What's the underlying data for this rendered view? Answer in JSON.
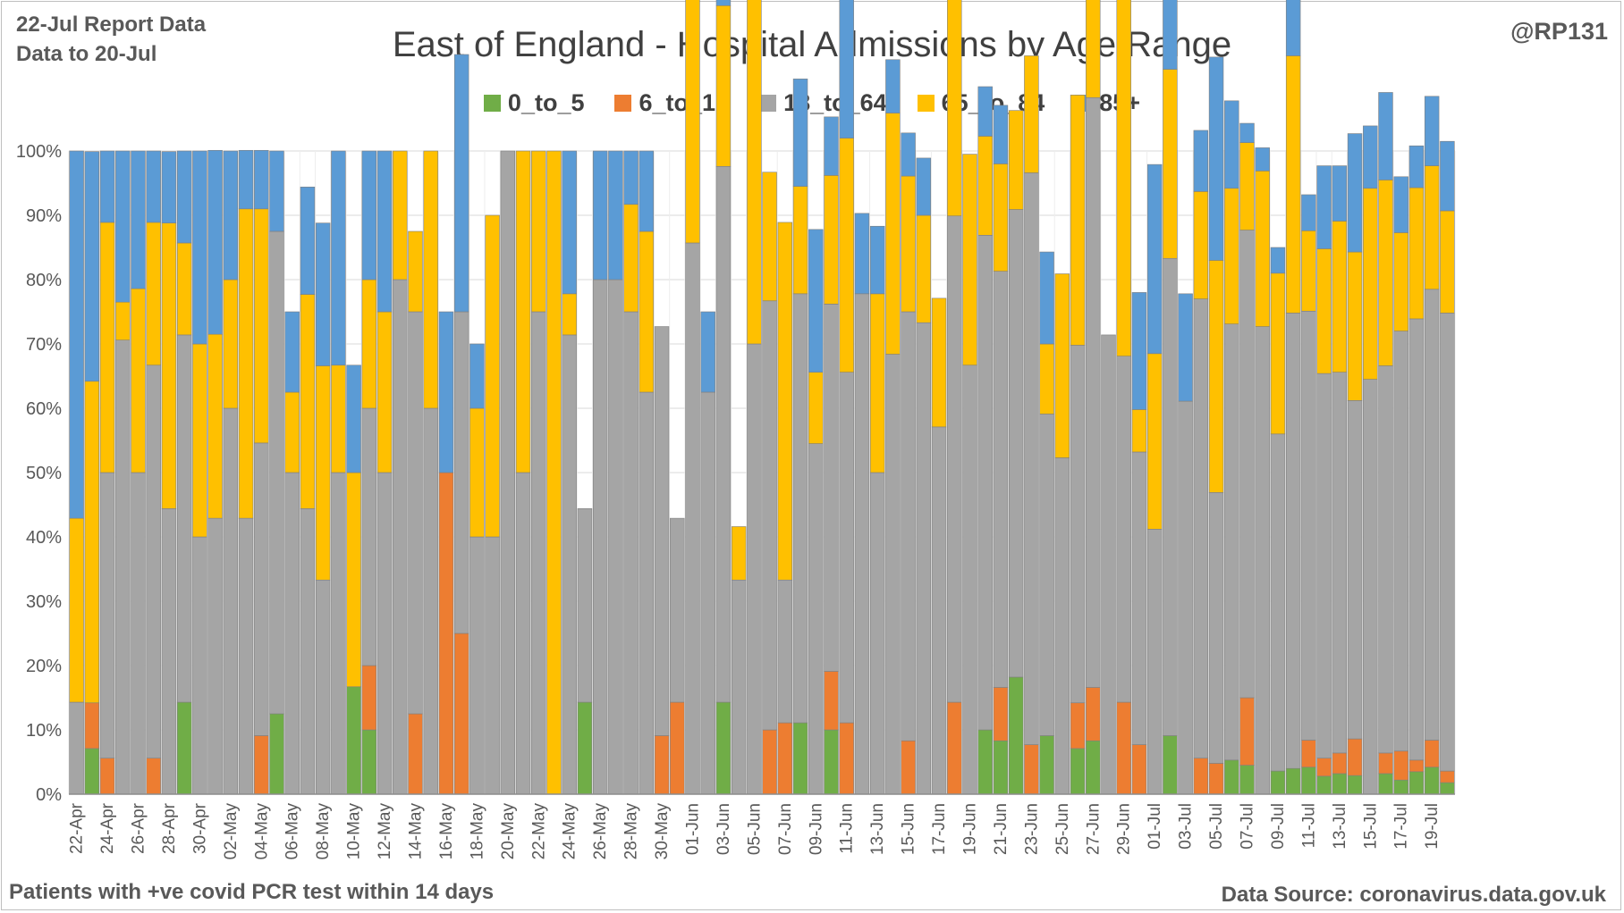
{
  "header": {
    "report_line1": "22-Jul Report Data",
    "report_line2": "Data to 20-Jul",
    "handle": "@RP131",
    "footnote": "Patients with  +ve covid PCR test within 14 days",
    "source": "Data Source: coronavirus.data.gov.uk"
  },
  "chart_data": {
    "type": "bar",
    "stacked": "percent",
    "title": "East of England - Hospital Admissions by Age Range",
    "xlabel": "",
    "ylabel": "",
    "ylim": [
      0,
      100
    ],
    "yticks": [
      "0%",
      "10%",
      "20%",
      "30%",
      "40%",
      "50%",
      "60%",
      "70%",
      "80%",
      "90%",
      "100%"
    ],
    "grid": true,
    "legend": "top-center",
    "categories": [
      "22-Apr",
      "23-Apr",
      "24-Apr",
      "25-Apr",
      "26-Apr",
      "27-Apr",
      "28-Apr",
      "29-Apr",
      "30-Apr",
      "01-May",
      "02-May",
      "03-May",
      "04-May",
      "05-May",
      "06-May",
      "07-May",
      "08-May",
      "09-May",
      "10-May",
      "11-May",
      "12-May",
      "13-May",
      "14-May",
      "15-May",
      "16-May",
      "17-May",
      "18-May",
      "19-May",
      "20-May",
      "21-May",
      "22-May",
      "23-May",
      "24-May",
      "25-May",
      "26-May",
      "27-May",
      "28-May",
      "29-May",
      "30-May",
      "31-May",
      "01-Jun",
      "02-Jun",
      "03-Jun",
      "04-Jun",
      "05-Jun",
      "06-Jun",
      "07-Jun",
      "08-Jun",
      "09-Jun",
      "10-Jun",
      "11-Jun",
      "12-Jun",
      "13-Jun",
      "14-Jun",
      "15-Jun",
      "16-Jun",
      "17-Jun",
      "18-Jun",
      "19-Jun",
      "20-Jun",
      "21-Jun",
      "22-Jun",
      "23-Jun",
      "24-Jun",
      "25-Jun",
      "26-Jun",
      "27-Jun",
      "28-Jun",
      "29-Jun",
      "30-Jun",
      "01-Jul",
      "02-Jul",
      "03-Jul",
      "04-Jul",
      "05-Jul",
      "06-Jul",
      "07-Jul",
      "08-Jul",
      "09-Jul",
      "10-Jul",
      "11-Jul",
      "12-Jul",
      "13-Jul",
      "14-Jul",
      "15-Jul",
      "16-Jul",
      "17-Jul",
      "18-Jul",
      "19-Jul",
      "20-Jul"
    ],
    "tick_labels": [
      "22-Apr",
      "24-Apr",
      "26-Apr",
      "28-Apr",
      "30-Apr",
      "02-May",
      "04-May",
      "06-May",
      "08-May",
      "10-May",
      "12-May",
      "14-May",
      "16-May",
      "18-May",
      "20-May",
      "22-May",
      "24-May",
      "26-May",
      "28-May",
      "30-May",
      "01-Jun",
      "03-Jun",
      "05-Jun",
      "07-Jun",
      "09-Jun",
      "11-Jun",
      "13-Jun",
      "15-Jun",
      "17-Jun",
      "19-Jun",
      "21-Jun",
      "23-Jun",
      "25-Jun",
      "27-Jun",
      "29-Jun",
      "01-Jul",
      "03-Jul",
      "05-Jul",
      "07-Jul",
      "09-Jul",
      "11-Jul",
      "13-Jul",
      "15-Jul",
      "17-Jul",
      "19-Jul"
    ],
    "series": [
      {
        "name": "0_to_5",
        "color": "#70ad47",
        "values": [
          0,
          7.1,
          0,
          0,
          0,
          0,
          0,
          14.3,
          0,
          0,
          0,
          0,
          0,
          12.5,
          0,
          0,
          0,
          0,
          16.7,
          10,
          0,
          0,
          0,
          0,
          0,
          0,
          0,
          0,
          0,
          0,
          0,
          0,
          0,
          14.3,
          0,
          0,
          0,
          0,
          0,
          0,
          0,
          0,
          14.3,
          0,
          0,
          0,
          0,
          11.1,
          0,
          10,
          0,
          0,
          0,
          0,
          0,
          0,
          0,
          0,
          0,
          10,
          8.3,
          18.2,
          0,
          9.1,
          0,
          7.1,
          8.3,
          0,
          0,
          0,
          0,
          9.1,
          0,
          0,
          0,
          5.3,
          4.5,
          0,
          3.6,
          4,
          4.2,
          2.8,
          3.2,
          2.9,
          0,
          3.2,
          2.2,
          3.5,
          4.2,
          1.8
        ]
      },
      {
        "name": "6_to_17",
        "color": "#ed7d31",
        "values": [
          0,
          7.1,
          5.6,
          0,
          0,
          5.6,
          0,
          0,
          0,
          0,
          0,
          0,
          9.1,
          0,
          0,
          0,
          0,
          0,
          0,
          10,
          0,
          0,
          12.5,
          0,
          50,
          25,
          0,
          0,
          0,
          0,
          0,
          0,
          0,
          0,
          0,
          0,
          0,
          0,
          9.1,
          14.3,
          0,
          0,
          0,
          0,
          0,
          10,
          11.1,
          0,
          0,
          9.1,
          11.1,
          0,
          0,
          0,
          8.3,
          0,
          0,
          14.3,
          0,
          0,
          8.3,
          0,
          7.7,
          0,
          0,
          7.1,
          8.3,
          0,
          14.3,
          7.7,
          0,
          0,
          0,
          5.6,
          4.8,
          0,
          10.5,
          0,
          0,
          0,
          4.2,
          2.8,
          3.2,
          5.7,
          0,
          3.2,
          4.5,
          1.8,
          4.2,
          1.8
        ]
      },
      {
        "name": "18_to_64",
        "color": "#a5a5a5",
        "values": [
          14.3,
          0,
          44.4,
          70.6,
          50,
          61.1,
          44.4,
          57.1,
          40,
          42.9,
          60,
          42.9,
          45.5,
          75,
          50,
          44.4,
          33.3,
          50,
          0,
          40,
          50,
          80,
          62.5,
          60,
          0,
          50,
          40,
          40,
          100,
          50,
          75,
          0,
          71.4,
          30.1,
          80,
          80,
          75,
          62.5,
          63.6,
          28.6,
          85.7,
          62.5,
          83.3,
          33.3,
          70,
          66.7,
          22.2,
          66.7,
          54.5,
          57.1,
          54.5,
          77.8,
          50,
          68.4,
          66.7,
          73.3,
          57.1,
          75.6,
          66.7,
          76.9,
          64.7,
          72.7,
          88.9,
          50,
          52.3,
          55.6,
          91.7,
          71.4,
          53.8,
          45.5,
          41.2,
          74.2,
          61.1,
          71.4,
          42.1,
          67.8,
          72.7,
          72.7,
          52.4,
          70.8,
          66.7,
          59.8,
          59.2,
          52.6,
          64.5,
          60.2,
          65.3,
          68.6,
          70.1,
          71.2
        ]
      },
      {
        "name": "65_to_84",
        "color": "#ffc000",
        "values": [
          28.6,
          50,
          38.9,
          5.9,
          28.6,
          22.2,
          44.4,
          14.3,
          30,
          28.6,
          20,
          48.1,
          36.4,
          0,
          12.5,
          33.3,
          33.3,
          16.7,
          33.3,
          20,
          25,
          20,
          12.5,
          40,
          0,
          0,
          20,
          50,
          0,
          50,
          25,
          100,
          6.4,
          0,
          0,
          0,
          16.7,
          25,
          0,
          0,
          57.1,
          0,
          25,
          8.3,
          66.7,
          20,
          55.6,
          16.7,
          11.1,
          20,
          36.4,
          0,
          27.8,
          37.5,
          21.1,
          16.7,
          20,
          35.7,
          32.8,
          15.4,
          16.7,
          15.4,
          18.2,
          10.9,
          28.6,
          38.9,
          33.3,
          0,
          71.4,
          6.6,
          27.3,
          29.4,
          0,
          16.7,
          36.1,
          21.1,
          13.6,
          24.2,
          25,
          40,
          12.5,
          19.4,
          23.5,
          23.1,
          29.7,
          28.9,
          15.3,
          20.4,
          19.2,
          15.9
        ]
      },
      {
        "name": "85+",
        "color": "#5b9bd5",
        "values": [
          57.1,
          35.7,
          11.1,
          23.5,
          21.4,
          11.1,
          11.1,
          14.3,
          30,
          28.6,
          20,
          9.1,
          9.1,
          12.5,
          12.5,
          16.7,
          22.2,
          33.3,
          16.7,
          20,
          25,
          0,
          0,
          0,
          25,
          40,
          10,
          0,
          0,
          0,
          0,
          0,
          22.2,
          0,
          20,
          20,
          8.3,
          12.5,
          0,
          0,
          14.3,
          12.5,
          8.3,
          0,
          0,
          0,
          0,
          16.7,
          22.2,
          9.1,
          33.3,
          12.5,
          10.5,
          8.3,
          6.7,
          8.9,
          0,
          0,
          0,
          7.7,
          9.1,
          0,
          0,
          14.3,
          0,
          0,
          8.3,
          0,
          7.7,
          18.2,
          29.4,
          16.7,
          16.7,
          9.5,
          31.6,
          13.6,
          3,
          3.6,
          4,
          12.5,
          5.6,
          12.9,
          8.6,
          18.4,
          9.7,
          13.6,
          8.7,
          6.5,
          10.8,
          10.8
        ]
      }
    ]
  }
}
